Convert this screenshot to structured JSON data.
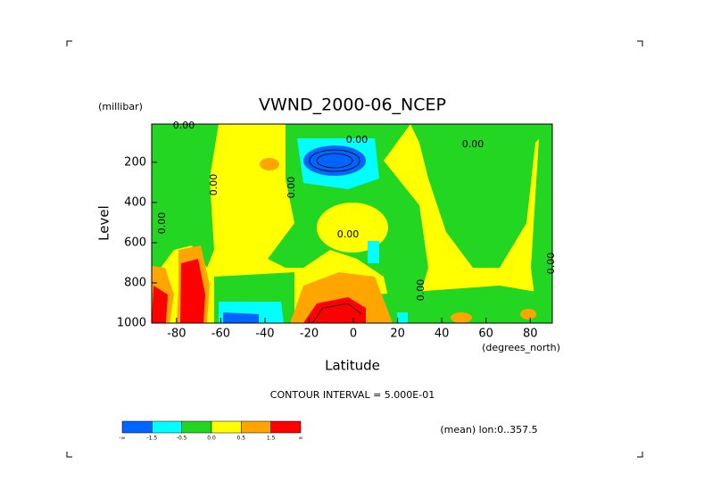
{
  "chart_data": {
    "type": "contour",
    "title": "VWND_2000-06_NCEP",
    "y_unit": "(millibar)",
    "y_label": "Level",
    "x_label": "Latitude",
    "x_unit": "(degrees_north)",
    "xlim": [
      -91.25,
      90
    ],
    "ylim": [
      1000,
      10
    ],
    "xticks": [
      -80,
      -60,
      -40,
      -20,
      0,
      20,
      40,
      60,
      80
    ],
    "yticks": [
      200,
      400,
      600,
      800,
      1000
    ],
    "contour_labels": [
      "0.00",
      "0.00",
      "0.00",
      "0.00",
      "0.00",
      "0.00",
      "0.00",
      "0.00",
      "0.00"
    ],
    "contour_interval": "CONTOUR INTERVAL = 5.000E-01",
    "footer": "(mean) lon:0..357.5",
    "colorbar": {
      "colors": [
        "#0064ff",
        "#00ffff",
        "#22d622",
        "#ffff00",
        "#ffa500",
        "#ff0000"
      ],
      "labels": [
        "-∞",
        "-1.5",
        "-0.5",
        "0.0",
        "0.5",
        "1.5",
        "∞"
      ]
    }
  }
}
